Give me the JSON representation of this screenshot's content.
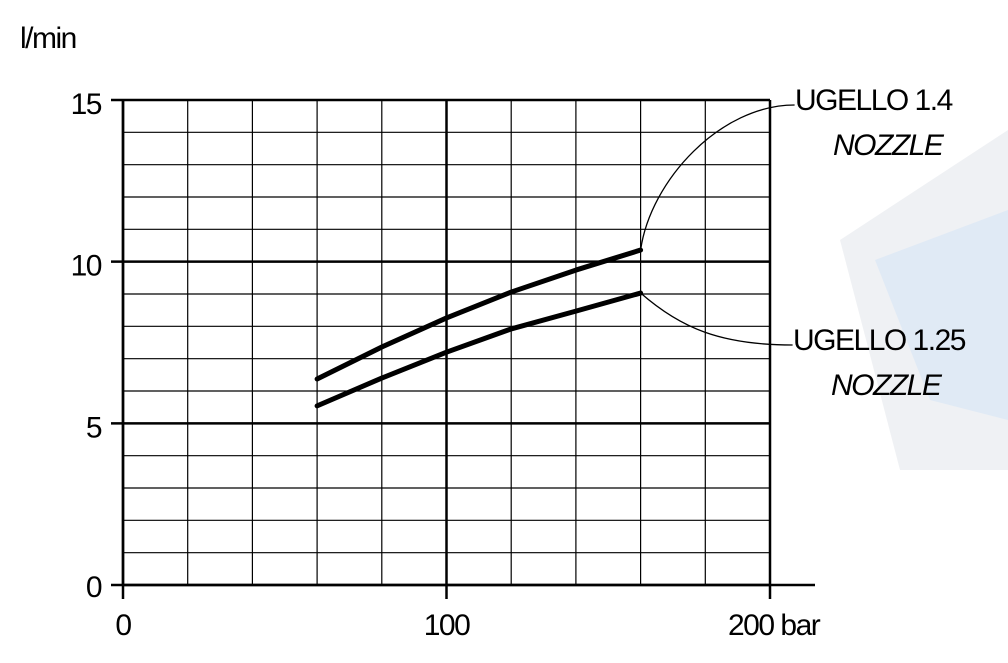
{
  "chart_data": {
    "type": "line",
    "y_label": "l/min",
    "x": [
      60,
      80,
      100,
      120,
      140,
      160
    ],
    "series": [
      {
        "name": "UGELLO 1.4",
        "name_en": "NOZZLE",
        "color": "#000000",
        "values": [
          6.37,
          7.36,
          8.26,
          9.06,
          9.74,
          10.36
        ]
      },
      {
        "name": "UGELLO 1.25",
        "name_en": "NOZZLE",
        "color": "#000000",
        "values": [
          5.54,
          6.4,
          7.2,
          7.92,
          8.47,
          9.03
        ]
      }
    ],
    "xlim": [
      0,
      200
    ],
    "xticks": [
      0,
      100,
      {
        "value": 200,
        "label": "200 bar"
      }
    ],
    "ylim": [
      0,
      15
    ],
    "yticks": [
      0,
      5,
      10,
      15
    ],
    "x_minor_ticks": [
      20,
      40,
      60,
      80,
      120,
      140,
      160,
      180
    ],
    "y_minor_ticks": [
      1,
      2,
      3,
      4,
      6,
      7,
      8,
      9,
      11,
      12,
      13,
      14
    ],
    "grid": true
  }
}
